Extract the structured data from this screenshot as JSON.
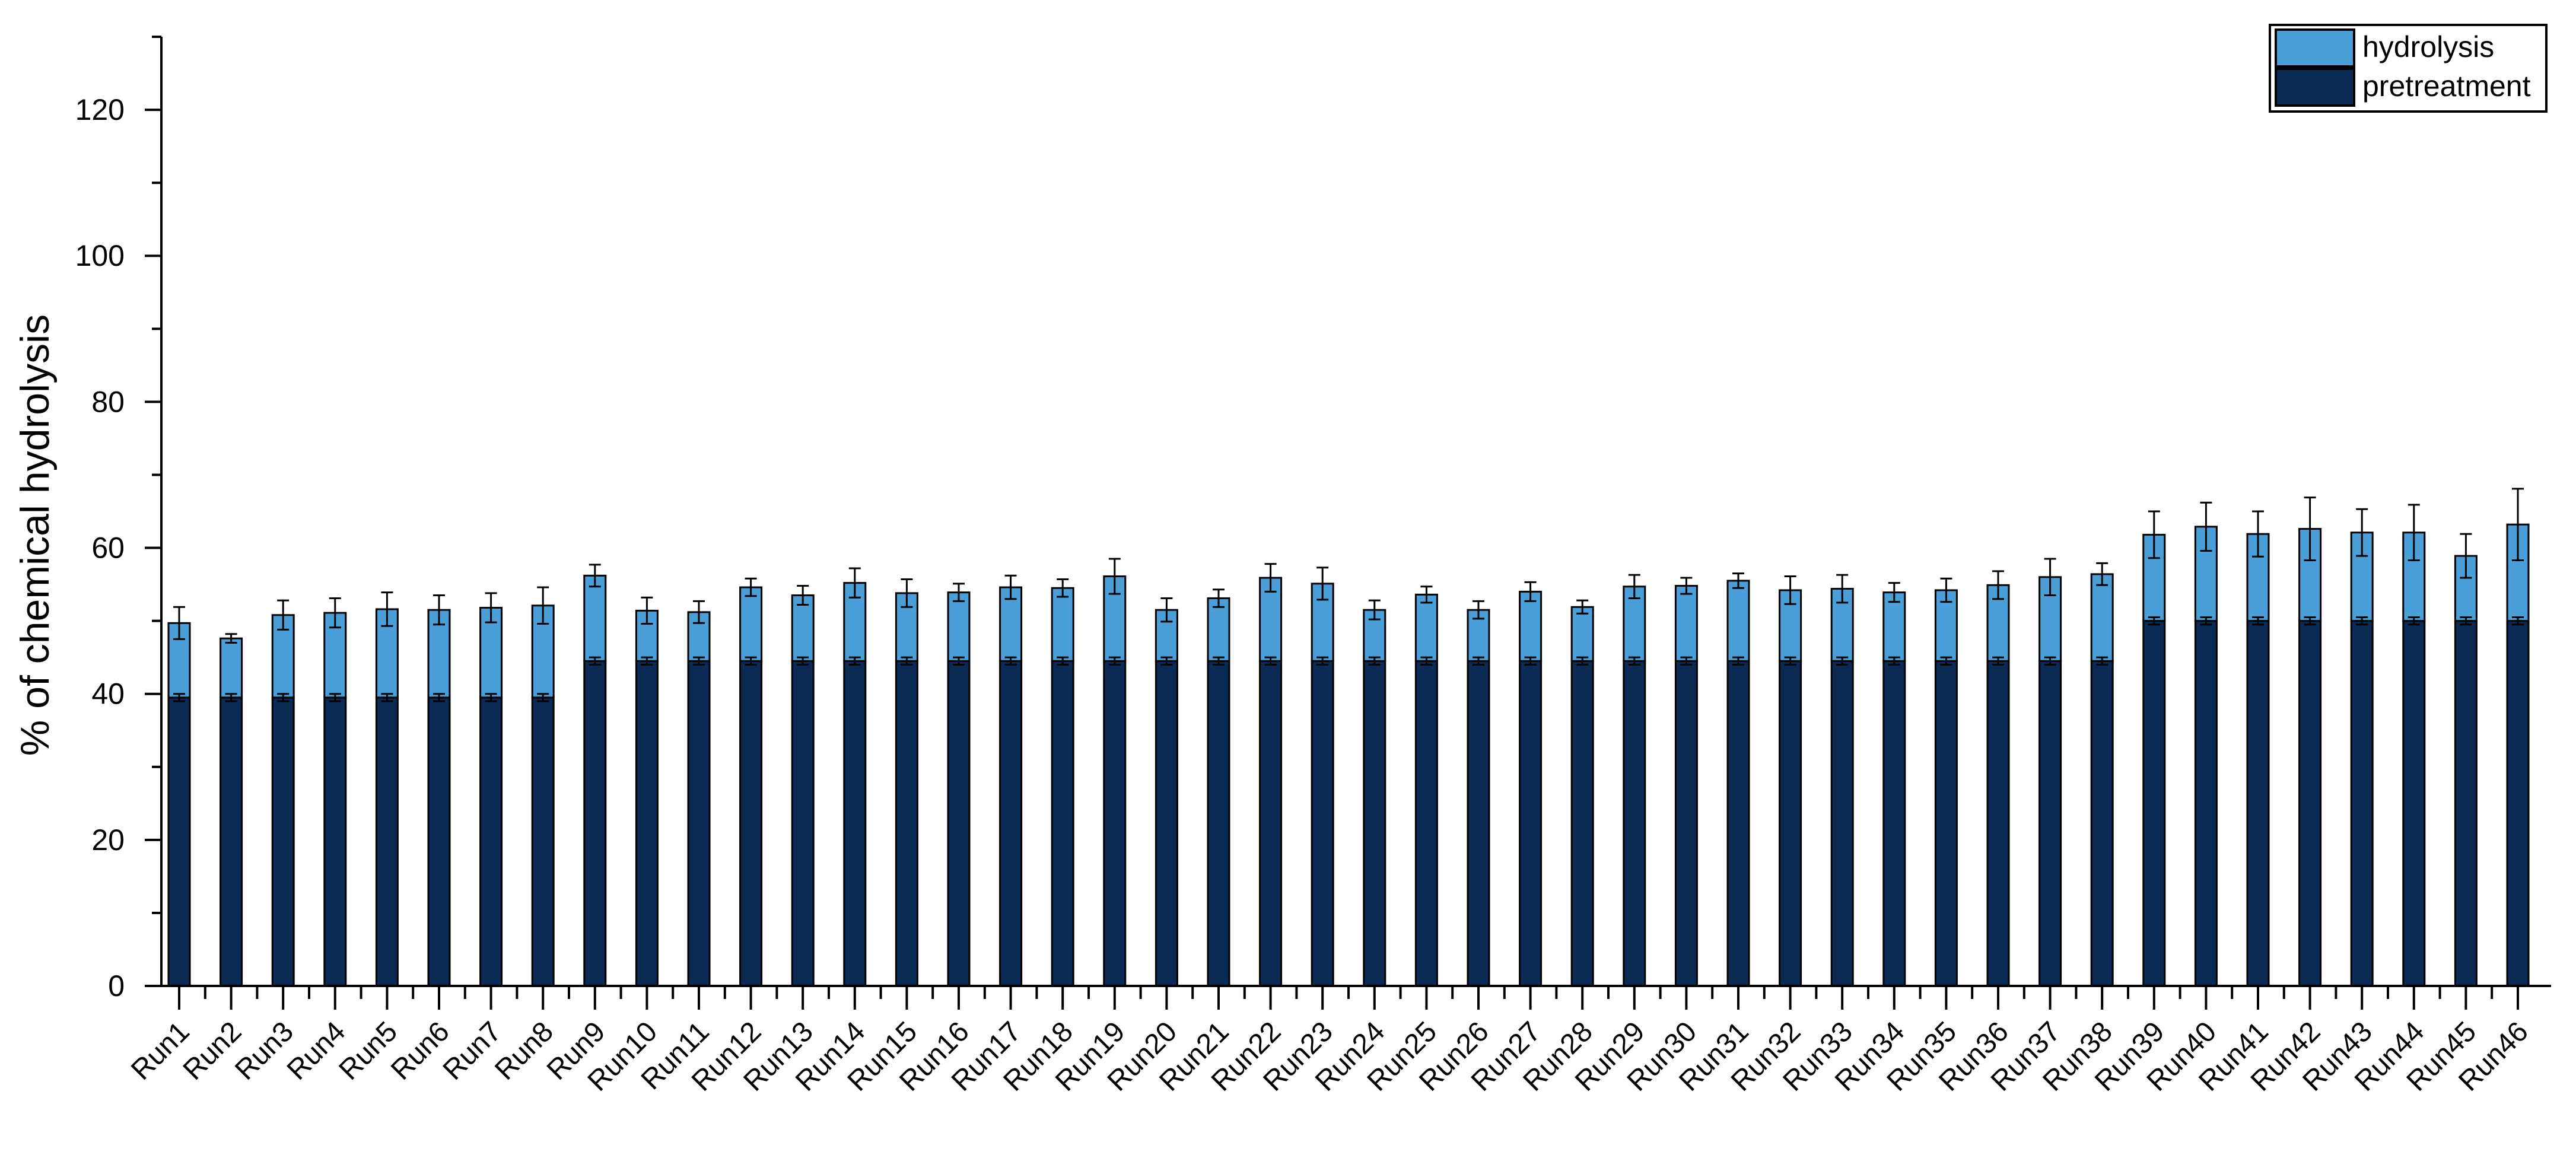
{
  "chart_data": {
    "type": "bar",
    "stacked": true,
    "ylabel": "% of chemical hydrolysis",
    "xlabel": "",
    "ylim": [
      0,
      130
    ],
    "yticks": [
      0,
      20,
      40,
      60,
      80,
      100,
      120
    ],
    "grid": false,
    "legend_position": "top-right",
    "categories": [
      "Run1",
      "Run2",
      "Run3",
      "Run4",
      "Run5",
      "Run6",
      "Run7",
      "Run8",
      "Run9",
      "Run10",
      "Run11",
      "Run12",
      "Run13",
      "Run14",
      "Run15",
      "Run16",
      "Run17",
      "Run18",
      "Run19",
      "Run20",
      "Run21",
      "Run22",
      "Run23",
      "Run24",
      "Run25",
      "Run26",
      "Run27",
      "Run28",
      "Run29",
      "Run30",
      "Run31",
      "Run32",
      "Run33",
      "Run34",
      "Run35",
      "Run36",
      "Run37",
      "Run38",
      "Run39",
      "Run40",
      "Run41",
      "Run42",
      "Run43",
      "Run44",
      "Run45",
      "Run46"
    ],
    "series": [
      {
        "name": "pretreatment",
        "color": "#0b2a54",
        "values": [
          39.5,
          39.5,
          39.5,
          39.5,
          39.5,
          39.5,
          39.5,
          39.5,
          44.5,
          44.5,
          44.5,
          44.5,
          44.5,
          44.5,
          44.5,
          44.5,
          44.5,
          44.5,
          44.5,
          44.5,
          44.5,
          44.5,
          44.5,
          44.5,
          44.5,
          44.5,
          44.5,
          44.5,
          44.5,
          44.5,
          44.5,
          44.5,
          44.5,
          44.5,
          44.5,
          44.5,
          44.5,
          44.5,
          50.0,
          50.0,
          50.0,
          50.0,
          50.0,
          50.0,
          50.0,
          50.0
        ],
        "errors": [
          0.5,
          0.5,
          0.5,
          0.5,
          0.5,
          0.5,
          0.5,
          0.5,
          0.5,
          0.5,
          0.5,
          0.5,
          0.5,
          0.5,
          0.5,
          0.5,
          0.5,
          0.5,
          0.5,
          0.5,
          0.5,
          0.5,
          0.5,
          0.5,
          0.5,
          0.5,
          0.5,
          0.5,
          0.5,
          0.5,
          0.5,
          0.5,
          0.5,
          0.5,
          0.5,
          0.5,
          0.5,
          0.5,
          0.5,
          0.5,
          0.5,
          0.5,
          0.5,
          0.5,
          0.5,
          0.5
        ]
      },
      {
        "name": "hydrolysis",
        "color": "#4a9fd8",
        "values": [
          10.2,
          8.1,
          11.3,
          11.6,
          12.1,
          12.0,
          12.3,
          12.6,
          11.7,
          6.9,
          6.7,
          10.1,
          9.0,
          10.7,
          9.3,
          9.4,
          10.1,
          10.0,
          11.6,
          7.0,
          8.6,
          11.4,
          10.6,
          7.0,
          9.1,
          7.0,
          9.5,
          7.4,
          10.2,
          10.3,
          11.0,
          9.7,
          9.9,
          9.4,
          9.7,
          10.4,
          11.5,
          11.9,
          11.8,
          12.9,
          11.9,
          12.6,
          12.1,
          12.1,
          8.9,
          13.2
        ],
        "errors": [
          2.2,
          0.6,
          2.0,
          2.0,
          2.3,
          2.0,
          2.0,
          2.5,
          1.5,
          1.8,
          1.5,
          1.2,
          1.3,
          2.0,
          1.9,
          1.2,
          1.6,
          1.2,
          2.4,
          1.6,
          1.2,
          1.9,
          2.2,
          1.3,
          1.1,
          1.2,
          1.3,
          0.9,
          1.6,
          1.1,
          1.0,
          1.9,
          1.9,
          1.3,
          1.6,
          1.9,
          2.5,
          1.5,
          3.2,
          3.3,
          3.1,
          4.3,
          3.2,
          3.8,
          3.0,
          4.9
        ]
      }
    ]
  }
}
